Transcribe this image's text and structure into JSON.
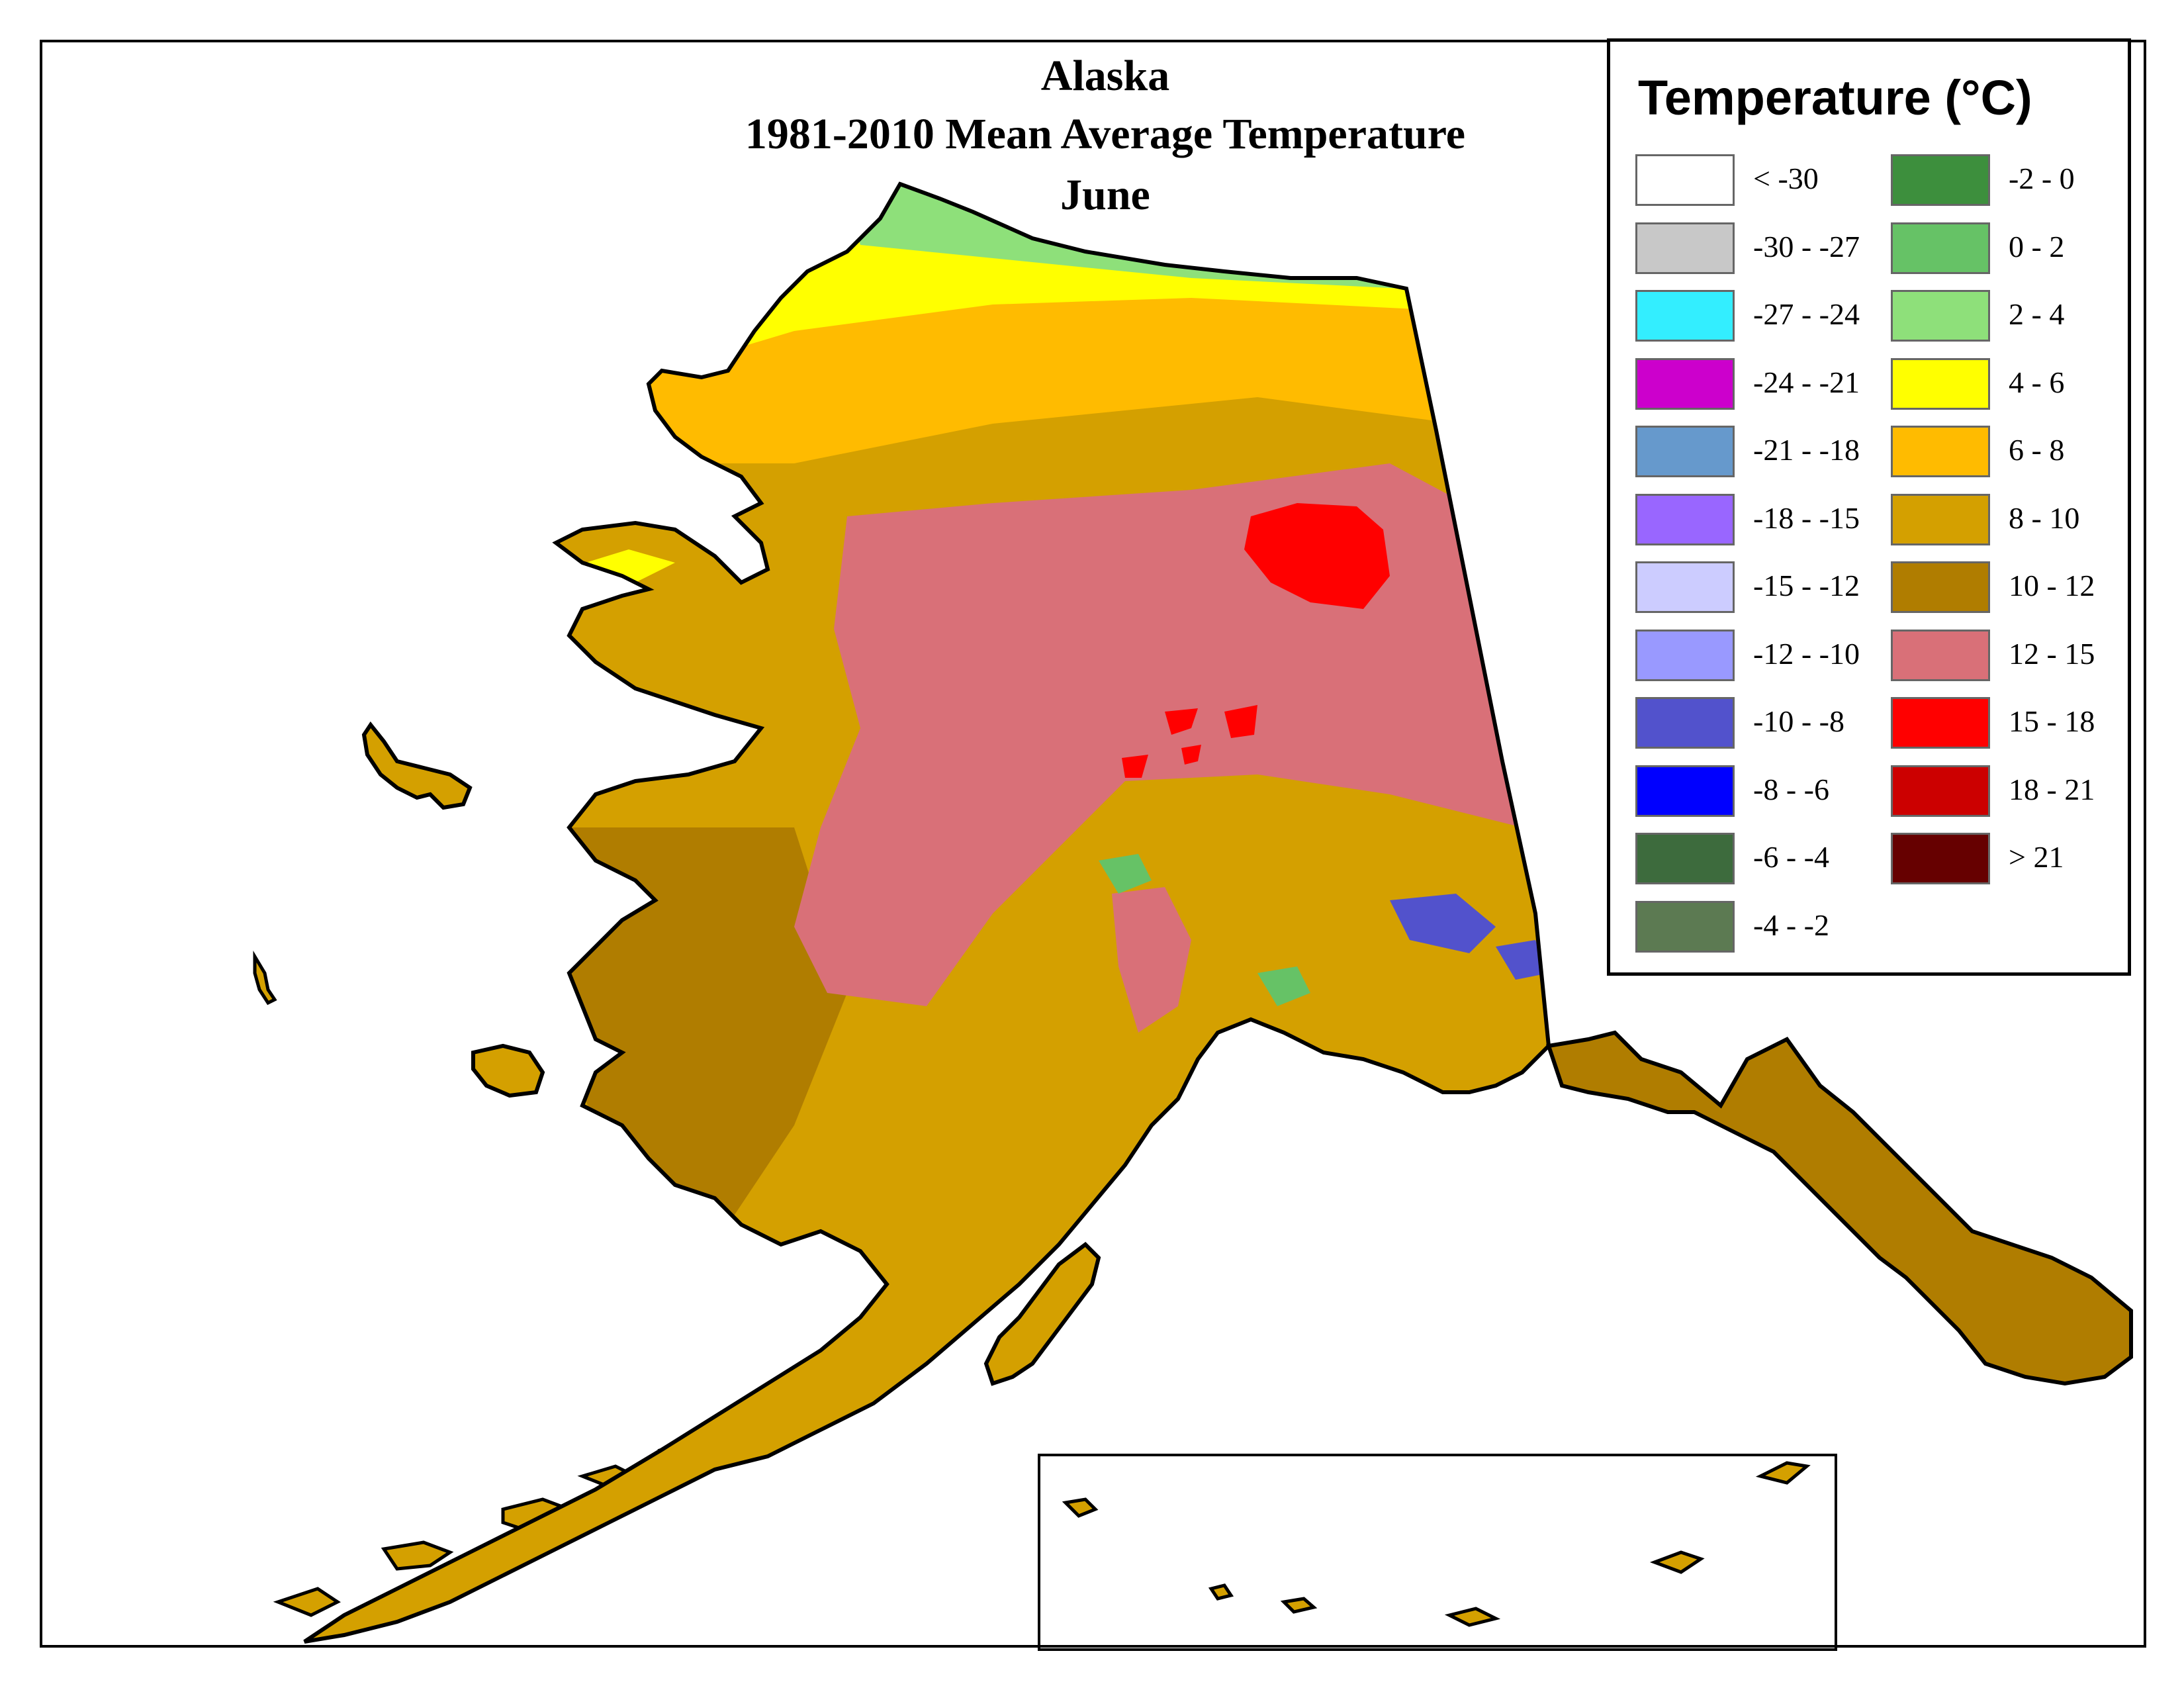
{
  "title": {
    "line1": "Alaska",
    "line2": "1981-2010 Mean Average Temperature",
    "line3": "June"
  },
  "legend": {
    "title": "Temperature (°C)",
    "items": [
      {
        "label": "< -30",
        "color": "#ffffff"
      },
      {
        "label": "-30 - -27",
        "color": "#c8c8c8"
      },
      {
        "label": "-27 - -24",
        "color": "#33eeff"
      },
      {
        "label": "-24 - -21",
        "color": "#cc00cc"
      },
      {
        "label": "-21 - -18",
        "color": "#6699cc"
      },
      {
        "label": "-18 - -15",
        "color": "#9966ff"
      },
      {
        "label": "-15 - -12",
        "color": "#ccccff"
      },
      {
        "label": "-12 - -10",
        "color": "#9999ff"
      },
      {
        "label": "-10 - -8",
        "color": "#5252cc"
      },
      {
        "label": "-8 - -6",
        "color": "#0000ff"
      },
      {
        "label": "-6 - -4",
        "color": "#3d6b3d"
      },
      {
        "label": "-4 - -2",
        "color": "#5c7a52"
      },
      {
        "label": "-2 - 0",
        "color": "#3d8f3d"
      },
      {
        "label": "0 - 2",
        "color": "#66c266"
      },
      {
        "label": "2 - 4",
        "color": "#8ee07a"
      },
      {
        "label": "4 - 6",
        "color": "#ffff00"
      },
      {
        "label": "6 - 8",
        "color": "#ffbb00"
      },
      {
        "label": "8 - 10",
        "color": "#d4a000"
      },
      {
        "label": "10 - 12",
        "color": "#b07d00"
      },
      {
        "label": "12 - 15",
        "color": "#d97078"
      },
      {
        "label": "15 - 18",
        "color": "#ff0000"
      },
      {
        "label": "18 - 21",
        "color": "#cc0000"
      },
      {
        "label": "> 21",
        "color": "#660000"
      }
    ]
  },
  "map_colors": {
    "north_slope_coast": "#8ee07a",
    "north_slope": "#ffff00",
    "brooks_foothills": "#ffbb00",
    "western": "#d4a000",
    "southwest": "#b07d00",
    "interior": "#d97078",
    "interior_hot": "#ff0000",
    "mountains_cold": "#5252cc",
    "mountains_green": "#66c266",
    "outline": "#000000"
  }
}
